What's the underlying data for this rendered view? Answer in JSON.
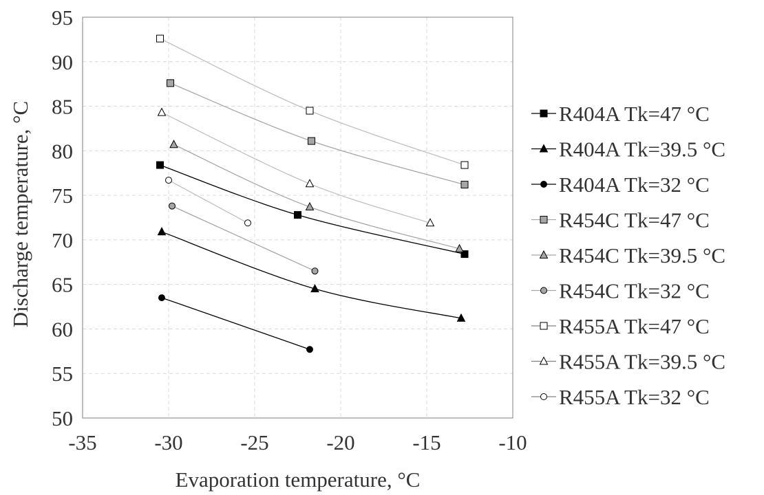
{
  "chart_data": {
    "type": "line",
    "title": "",
    "xlabel": "Evaporation temperature, °C",
    "ylabel": "Discharge temperature, °C",
    "xlim": [
      -35,
      -10
    ],
    "ylim": [
      50,
      95
    ],
    "xticks": [
      -35,
      -30,
      -25,
      -20,
      -15,
      -10
    ],
    "yticks": [
      50,
      55,
      60,
      65,
      70,
      75,
      80,
      85,
      90,
      95
    ],
    "xtick_labels": [
      "-35",
      "-30",
      "-25",
      "-20",
      "-15",
      "-10"
    ],
    "ytick_labels": [
      "50",
      "55",
      "60",
      "65",
      "70",
      "75",
      "80",
      "85",
      "90",
      "95"
    ],
    "grid": true,
    "legend_position": "right",
    "series": [
      {
        "name": "R404A Tk=47 °C",
        "marker": "square",
        "fill": "#000000",
        "line": "#000000",
        "x": [
          -30.5,
          -22.5,
          -12.8
        ],
        "y": [
          78.4,
          72.8,
          68.4
        ]
      },
      {
        "name": "R404A Tk=39.5 °C",
        "marker": "triangle",
        "fill": "#000000",
        "line": "#000000",
        "x": [
          -30.4,
          -21.5,
          -13.0
        ],
        "y": [
          70.9,
          64.5,
          61.2
        ]
      },
      {
        "name": "R404A Tk=32 °C",
        "marker": "circle",
        "fill": "#000000",
        "line": "#000000",
        "x": [
          -30.4,
          -21.8
        ],
        "y": [
          63.5,
          57.7
        ]
      },
      {
        "name": "R454C Tk=47 °C",
        "marker": "square",
        "fill": "#a6a6a6",
        "line": "#a6a6a6",
        "x": [
          -29.9,
          -21.7,
          -12.8
        ],
        "y": [
          87.6,
          81.1,
          76.2
        ]
      },
      {
        "name": "R454C Tk=39.5 °C",
        "marker": "triangle",
        "fill": "#a6a6a6",
        "line": "#a6a6a6",
        "x": [
          -29.7,
          -21.8,
          -13.1
        ],
        "y": [
          80.7,
          73.7,
          69.0
        ]
      },
      {
        "name": "R454C Tk=32 °C",
        "marker": "circle",
        "fill": "#a6a6a6",
        "line": "#a6a6a6",
        "x": [
          -29.8,
          -21.5
        ],
        "y": [
          73.8,
          66.5
        ]
      },
      {
        "name": "R455A Tk=47 °C",
        "marker": "square",
        "fill": "#ffffff",
        "line": "#bfbfbf",
        "x": [
          -30.5,
          -21.8,
          -12.8
        ],
        "y": [
          92.6,
          84.5,
          78.4
        ]
      },
      {
        "name": "R455A Tk=39.5 °C",
        "marker": "triangle",
        "fill": "#ffffff",
        "line": "#bfbfbf",
        "x": [
          -30.4,
          -21.8,
          -14.8
        ],
        "y": [
          84.3,
          76.3,
          71.9
        ]
      },
      {
        "name": "R455A Tk=32 °C",
        "marker": "circle",
        "fill": "#ffffff",
        "line": "#bfbfbf",
        "x": [
          -30.0,
          -25.4
        ],
        "y": [
          76.7,
          71.9
        ]
      }
    ]
  }
}
